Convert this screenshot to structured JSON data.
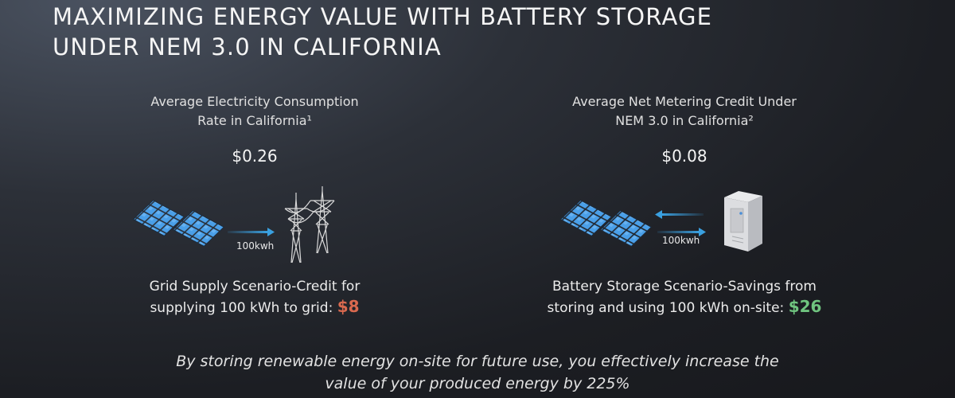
{
  "title": [
    "MAXIMIZING ENERGY VALUE WITH BATTERY STORAGE",
    "UNDER NEM 3.0 IN CALIFORNIA"
  ],
  "left": {
    "label_line1": "Average Electricity Consumption",
    "label_line2": "Rate in California¹",
    "value": "$0.26",
    "transfer_label": "100kwh",
    "scenario_line1": "Grid Supply Scenario-Credit for",
    "scenario_line2": "supplying 100 kWh to grid:",
    "amount": "$8",
    "amount_color": "#d9694f",
    "icons": [
      "solar-panel-icon",
      "solar-panel-icon",
      "arrow-right-icon",
      "transmission-tower-icon"
    ]
  },
  "right": {
    "label_line1": "Average Net Metering Credit Under",
    "label_line2": "NEM 3.0 in California²",
    "value": "$0.08",
    "transfer_label": "100kwh",
    "scenario_line1": "Battery Storage Scenario-Savings from",
    "scenario_line2": "storing and using 100 kWh on-site:",
    "amount": "$26",
    "amount_color": "#6fc47f",
    "icons": [
      "solar-panel-icon",
      "solar-panel-icon",
      "arrow-left-icon",
      "arrow-right-icon",
      "battery-cabinet-icon"
    ]
  },
  "footer_line1": "By storing renewable energy on-site for future use, you effectively increase the",
  "footer_line2": "value of your produced energy by 225%",
  "colors": {
    "arrow": "#3aa0e0",
    "panel": "#4a9fe8"
  }
}
